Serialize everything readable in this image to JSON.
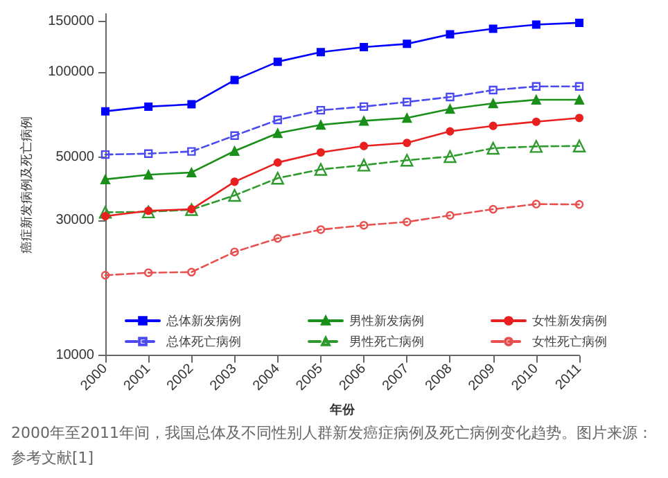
{
  "chart_data": {
    "type": "line",
    "categories": [
      "2000",
      "2001",
      "2002",
      "2003",
      "2004",
      "2005",
      "2006",
      "2007",
      "2008",
      "2009",
      "2010",
      "2011"
    ],
    "xlabel": "年份",
    "ylabel": "癌症新发病例及死亡病例",
    "log": "y",
    "ylim": [
      10000,
      160000
    ],
    "yticks": [
      10000,
      30000,
      50000,
      100000,
      150000
    ],
    "grid": false,
    "legend": "bottom",
    "annotations": [
      "2000年至2011年间，我国总体及不同性别人群新发癌症病例及死亡病例变化趋势。图片来源：参考文献[1]"
    ],
    "series": [
      {
        "name": "总体新发病例",
        "color": "#0000ff",
        "marker": "square",
        "line_style": "solid",
        "values": [
          72600,
          75400,
          76800,
          93500,
          108500,
          117300,
          122200,
          125400,
          135500,
          141800,
          146600,
          148800
        ]
      },
      {
        "name": "总体死亡病例",
        "color": "#4a4af0",
        "marker": "square",
        "line_style": "dashed",
        "values": [
          51100,
          51500,
          52400,
          59600,
          67700,
          73200,
          75400,
          78300,
          81500,
          86200,
          88800,
          88800
        ]
      },
      {
        "name": "男性新发病例",
        "color": "#1a8f1a",
        "marker": "triangle",
        "line_style": "solid",
        "values": [
          41800,
          43400,
          44200,
          52600,
          60800,
          65000,
          67200,
          68800,
          74000,
          77400,
          79700,
          79700
        ]
      },
      {
        "name": "男性死亡病例",
        "color": "#2e9a2e",
        "marker": "triangle",
        "line_style": "dashed",
        "values": [
          32000,
          32100,
          32700,
          36700,
          42200,
          45300,
          46900,
          48800,
          50300,
          53800,
          54600,
          54800
        ]
      },
      {
        "name": "女性新发病例",
        "color": "#e82020",
        "marker": "circle",
        "line_style": "solid",
        "values": [
          31000,
          32400,
          32800,
          41000,
          47900,
          52000,
          54800,
          56200,
          61700,
          64500,
          66700,
          68800
        ]
      },
      {
        "name": "女性死亡病例",
        "color": "#e85050",
        "marker": "circle",
        "line_style": "dashed",
        "values": [
          19200,
          19600,
          19700,
          23200,
          25900,
          27800,
          28800,
          29600,
          31200,
          32800,
          34200,
          34100
        ]
      }
    ]
  }
}
